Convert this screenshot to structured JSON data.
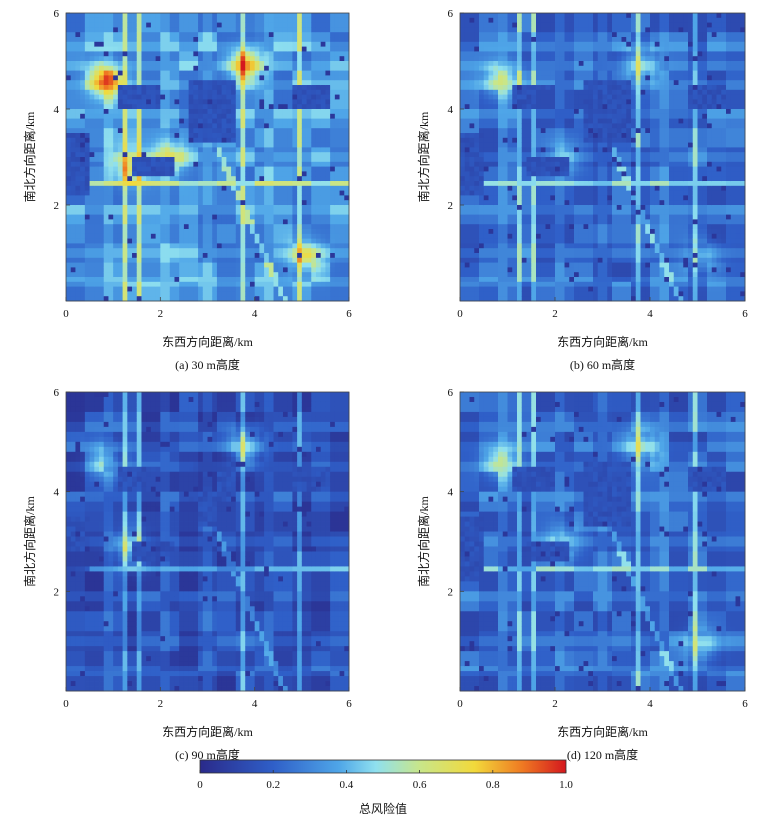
{
  "chart_data": [
    {
      "type": "heatmap",
      "caption": "(a)   30 m高度",
      "xlabel": "东西方向距离/km",
      "ylabel": "南北方向距离/km",
      "xlim": [
        0,
        6
      ],
      "ylim": [
        0,
        6
      ],
      "xticks": [
        "0",
        "2",
        "4",
        "6"
      ],
      "yticks": [
        "2",
        "4",
        "6"
      ],
      "mean_risk": 0.45,
      "hotspots": [
        {
          "x": 0.85,
          "y": 4.6,
          "value": 0.95
        },
        {
          "x": 3.8,
          "y": 4.9,
          "value": 0.9
        },
        {
          "x": 2.2,
          "y": 3.0,
          "value": 0.8
        },
        {
          "x": 1.4,
          "y": 2.8,
          "value": 0.75
        },
        {
          "x": 5.1,
          "y": 0.9,
          "value": 0.75
        }
      ]
    },
    {
      "type": "heatmap",
      "caption": "(b)   60 m高度",
      "xlabel": "东西方向距离/km",
      "ylabel": "南北方向距离/km",
      "xlim": [
        0,
        6
      ],
      "ylim": [
        0,
        6
      ],
      "xticks": [
        "0",
        "2",
        "4",
        "6"
      ],
      "yticks": [
        "2",
        "4",
        "6"
      ],
      "mean_risk": 0.3,
      "hotspots": [
        {
          "x": 0.85,
          "y": 4.6,
          "value": 0.6
        },
        {
          "x": 3.8,
          "y": 4.9,
          "value": 0.6
        },
        {
          "x": 2.2,
          "y": 3.0,
          "value": 0.5
        },
        {
          "x": 5.1,
          "y": 0.9,
          "value": 0.5
        }
      ]
    },
    {
      "type": "heatmap",
      "caption": "(c)   90 m高度",
      "xlabel": "东西方向距离/km",
      "ylabel": "南北方向距离/km",
      "xlim": [
        0,
        6
      ],
      "ylim": [
        0,
        6
      ],
      "xticks": [
        "0",
        "2",
        "4",
        "6"
      ],
      "yticks": [
        "2",
        "4",
        "6"
      ],
      "mean_risk": 0.18,
      "hotspots": [
        {
          "x": 0.85,
          "y": 4.6,
          "value": 0.45
        },
        {
          "x": 3.8,
          "y": 4.9,
          "value": 0.5
        },
        {
          "x": 1.4,
          "y": 2.8,
          "value": 0.45
        }
      ]
    },
    {
      "type": "heatmap",
      "caption": "(d)   120 m高度",
      "xlabel": "东西方向距离/km",
      "ylabel": "南北方向距离/km",
      "xlim": [
        0,
        6
      ],
      "ylim": [
        0,
        6
      ],
      "xticks": [
        "0",
        "2",
        "4",
        "6"
      ],
      "yticks": [
        "2",
        "4",
        "6"
      ],
      "mean_risk": 0.28,
      "hotspots": [
        {
          "x": 0.85,
          "y": 4.6,
          "value": 0.55
        },
        {
          "x": 3.8,
          "y": 4.9,
          "value": 0.55
        },
        {
          "x": 2.2,
          "y": 3.0,
          "value": 0.5
        },
        {
          "x": 5.1,
          "y": 0.9,
          "value": 0.5
        }
      ]
    }
  ],
  "colorbar": {
    "label": "总风险值",
    "range": [
      0,
      1
    ],
    "ticks": [
      "0",
      "0.2",
      "0.4",
      "0.6",
      "0.8",
      "1.0"
    ],
    "colormap": [
      "#2a2a8a",
      "#2f5fc8",
      "#4fa6e8",
      "#8fe0ef",
      "#c8e68a",
      "#f2d93b",
      "#ef7a22",
      "#d4171e"
    ]
  }
}
